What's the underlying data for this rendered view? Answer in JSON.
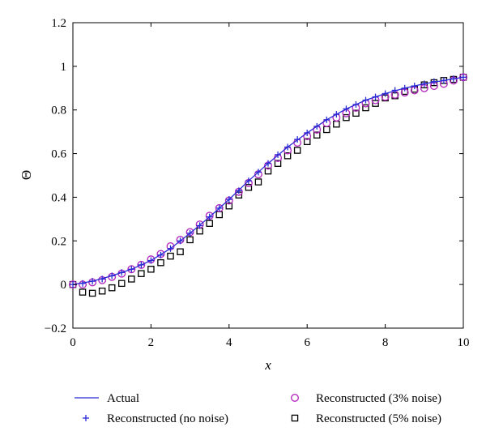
{
  "chart_data": {
    "type": "line",
    "xlabel": "x",
    "ylabel": "Θ",
    "xlim": [
      0,
      10
    ],
    "ylim": [
      -0.2,
      1.2
    ],
    "xticks": [
      0,
      2,
      4,
      6,
      8,
      10
    ],
    "yticks": [
      -0.2,
      0,
      0.2,
      0.4,
      0.6,
      0.8,
      1,
      1.2
    ],
    "xtick_labels": [
      "0",
      "2",
      "4",
      "6",
      "8",
      "10"
    ],
    "ytick_labels": [
      "−0.2",
      "0",
      "0.2",
      "0.4",
      "0.6",
      "0.8",
      "1",
      "1.2"
    ],
    "grid": false,
    "legend_position": "bottom",
    "series": [
      {
        "name": "Actual",
        "style": "line",
        "color": "#2b2bd4",
        "x": [
          0,
          0.5,
          1,
          1.5,
          2,
          2.5,
          3,
          3.5,
          4,
          4.5,
          5,
          5.5,
          6,
          6.5,
          7,
          7.5,
          8,
          8.5,
          9,
          9.5,
          10
        ],
        "y": [
          0,
          0.015,
          0.04,
          0.07,
          0.11,
          0.165,
          0.235,
          0.31,
          0.39,
          0.475,
          0.555,
          0.63,
          0.695,
          0.755,
          0.805,
          0.845,
          0.875,
          0.9,
          0.92,
          0.935,
          0.95
        ]
      },
      {
        "name": "Reconstructed (no noise)",
        "style": "plus",
        "color": "#2b2bd4",
        "x": [
          0,
          0.25,
          0.5,
          0.75,
          1,
          1.25,
          1.5,
          1.75,
          2,
          2.25,
          2.5,
          2.75,
          3,
          3.25,
          3.5,
          3.75,
          4,
          4.25,
          4.5,
          4.75,
          5,
          5.25,
          5.5,
          5.75,
          6,
          6.25,
          6.5,
          6.75,
          7,
          7.25,
          7.5,
          7.75,
          8,
          8.25,
          8.5,
          8.75,
          9,
          9.25,
          9.5,
          9.75,
          10
        ],
        "y": [
          0,
          0.005,
          0.015,
          0.025,
          0.04,
          0.055,
          0.07,
          0.09,
          0.11,
          0.135,
          0.165,
          0.2,
          0.235,
          0.27,
          0.31,
          0.35,
          0.39,
          0.43,
          0.475,
          0.515,
          0.555,
          0.595,
          0.63,
          0.665,
          0.695,
          0.725,
          0.755,
          0.78,
          0.805,
          0.825,
          0.845,
          0.86,
          0.875,
          0.89,
          0.9,
          0.91,
          0.92,
          0.93,
          0.935,
          0.943,
          0.95
        ]
      },
      {
        "name": "Reconstructed (3% noise)",
        "style": "circle",
        "color": "#b52fbf",
        "x": [
          0,
          0.25,
          0.5,
          0.75,
          1,
          1.25,
          1.5,
          1.75,
          2,
          2.25,
          2.5,
          2.75,
          3,
          3.25,
          3.5,
          3.75,
          4,
          4.25,
          4.5,
          4.75,
          5,
          5.25,
          5.5,
          5.75,
          6,
          6.25,
          6.5,
          6.75,
          7,
          7.25,
          7.5,
          7.75,
          8,
          8.25,
          8.5,
          8.75,
          9,
          9.25,
          9.5,
          9.75,
          10
        ],
        "y": [
          0,
          0,
          0.01,
          0.02,
          0.035,
          0.05,
          0.07,
          0.09,
          0.115,
          0.14,
          0.175,
          0.205,
          0.24,
          0.275,
          0.315,
          0.35,
          0.385,
          0.425,
          0.465,
          0.505,
          0.545,
          0.58,
          0.615,
          0.65,
          0.68,
          0.71,
          0.74,
          0.765,
          0.785,
          0.81,
          0.83,
          0.845,
          0.86,
          0.87,
          0.88,
          0.89,
          0.9,
          0.91,
          0.92,
          0.935,
          0.95
        ]
      },
      {
        "name": "Reconstructed (5% noise)",
        "style": "square",
        "color": "#000000",
        "x": [
          0,
          0.25,
          0.5,
          0.75,
          1,
          1.25,
          1.5,
          1.75,
          2,
          2.25,
          2.5,
          2.75,
          3,
          3.25,
          3.5,
          3.75,
          4,
          4.25,
          4.5,
          4.75,
          5,
          5.25,
          5.5,
          5.75,
          6,
          6.25,
          6.5,
          6.75,
          7,
          7.25,
          7.5,
          7.75,
          8,
          8.25,
          8.5,
          8.75,
          9,
          9.25,
          9.5,
          9.75,
          10
        ],
        "y": [
          0,
          -0.035,
          -0.04,
          -0.03,
          -0.015,
          0.005,
          0.025,
          0.05,
          0.07,
          0.1,
          0.13,
          0.15,
          0.205,
          0.245,
          0.28,
          0.32,
          0.36,
          0.41,
          0.445,
          0.47,
          0.52,
          0.555,
          0.59,
          0.615,
          0.655,
          0.685,
          0.71,
          0.735,
          0.765,
          0.785,
          0.81,
          0.83,
          0.855,
          0.865,
          0.885,
          0.895,
          0.915,
          0.925,
          0.935,
          0.94,
          0.95
        ]
      }
    ]
  }
}
